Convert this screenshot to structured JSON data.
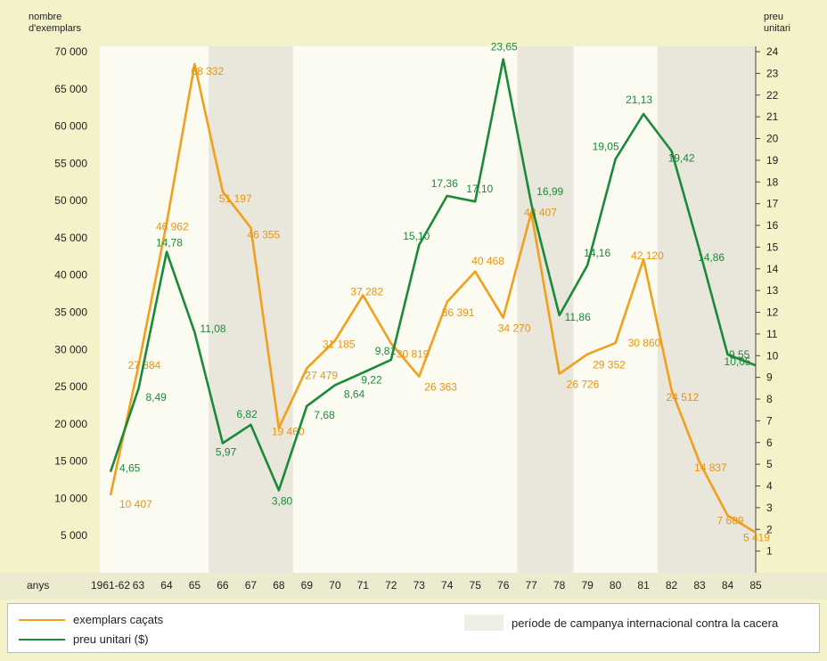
{
  "chart_data": {
    "type": "line",
    "y_left_label_line1": "nombre",
    "y_left_label_line2": "d'exemplars",
    "y_right_label_line1": "preu",
    "y_right_label_line2": "unitari",
    "x_axis_label": "anys",
    "ylim_left": [
      0,
      70000
    ],
    "ylim_right": [
      0,
      24
    ],
    "left_ticks": [
      "5 000",
      "10 000",
      "15 000",
      "20 000",
      "25 000",
      "30 000",
      "35 000",
      "40 000",
      "45 000",
      "50 000",
      "55 000",
      "60 000",
      "65 000",
      "70 000"
    ],
    "left_tick_values": [
      5000,
      10000,
      15000,
      20000,
      25000,
      30000,
      35000,
      40000,
      45000,
      50000,
      55000,
      60000,
      65000,
      70000
    ],
    "right_ticks": [
      "1",
      "2",
      "3",
      "4",
      "5",
      "6",
      "7",
      "8",
      "9",
      "10",
      "11",
      "12",
      "13",
      "14",
      "15",
      "16",
      "17",
      "18",
      "19",
      "20",
      "21",
      "22",
      "23",
      "24"
    ],
    "categories": [
      "1961-62",
      "63",
      "64",
      "65",
      "66",
      "67",
      "68",
      "69",
      "70",
      "71",
      "72",
      "73",
      "74",
      "75",
      "76",
      "77",
      "78",
      "79",
      "80",
      "81",
      "82",
      "83",
      "84",
      "85"
    ],
    "campaign_periods": [
      [
        "66",
        "68"
      ],
      [
        "77",
        "78"
      ],
      [
        "82",
        "85"
      ]
    ],
    "series": [
      {
        "name": "exemplars caçats",
        "axis": "left",
        "color": "#f0a01c",
        "values": [
          10407,
          27884,
          46962,
          68332,
          51197,
          46355,
          19460,
          27479,
          31185,
          37282,
          30819,
          26363,
          36391,
          40468,
          34270,
          48407,
          26726,
          29352,
          30860,
          42120,
          24512,
          14837,
          7689,
          5419
        ],
        "labels": [
          "10 407",
          "27 884",
          "46 962",
          "68 332",
          "51 197",
          "46 355",
          "19 460",
          "27 479",
          "31 185",
          "37 282",
          "30 819",
          "26 363",
          "36 391",
          "40 468",
          "34 270",
          "48 407",
          "26 726",
          "29 352",
          "30 860",
          "42 120",
          "24 512",
          "14 837",
          "7 689",
          "5 419"
        ]
      },
      {
        "name": "preu unitari ($)",
        "axis": "right",
        "color": "#1a8a3a",
        "values": [
          4.65,
          8.49,
          14.78,
          11.08,
          5.97,
          6.82,
          3.8,
          7.68,
          8.64,
          9.22,
          9.81,
          15.1,
          17.36,
          17.1,
          23.65,
          16.99,
          11.86,
          14.16,
          19.05,
          21.13,
          19.42,
          14.86,
          10.05,
          9.55
        ],
        "labels": [
          "4,65",
          "8,49",
          "14,78",
          "11,08",
          "5,97",
          "6,82",
          "3,80",
          "7,68",
          "8,64",
          "9,22",
          "9,81",
          "15,10",
          "17,36",
          "17,10",
          "23,65",
          "16,99",
          "11,86",
          "14,16",
          "19,05",
          "21,13",
          "19,42",
          "14,86",
          "10,05",
          "9,55"
        ]
      }
    ]
  },
  "legend": {
    "orange_label": "exemplars caçats",
    "green_label": "preu unitari ($)",
    "period_label": "període de campanya internacional contra la cacera",
    "orange_color": "#f0a01c",
    "green_color": "#1a8a3a"
  }
}
